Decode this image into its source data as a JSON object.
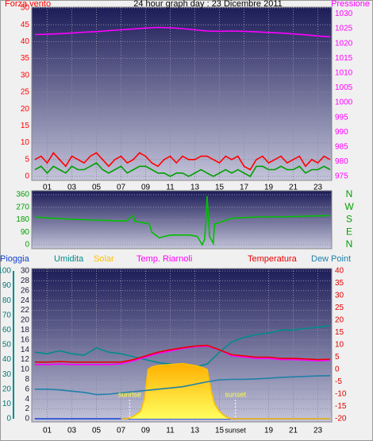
{
  "chart_data": [
    {
      "type": "line",
      "title": "24 hour graph day : 23 Dicembre 2011",
      "ylabel": "Forza vento",
      "y2label": "Pressione",
      "xlim": [
        0,
        24
      ],
      "xticks": [
        {
          "value": 1,
          "label": "01"
        },
        {
          "value": 3,
          "label": "03"
        },
        {
          "value": 5,
          "label": "05"
        },
        {
          "value": 7,
          "label": "07"
        },
        {
          "value": 9,
          "label": "09"
        },
        {
          "value": 11,
          "label": "11"
        },
        {
          "value": 13,
          "label": "13"
        },
        {
          "value": 15,
          "label": "15"
        },
        {
          "value": 17,
          "label": "17"
        },
        {
          "value": 19,
          "label": "19"
        },
        {
          "value": 21,
          "label": "21"
        },
        {
          "value": 23,
          "label": "23"
        }
      ],
      "ylim": [
        0,
        50
      ],
      "yticks": [
        0,
        5,
        10,
        15,
        20,
        25,
        30,
        35,
        40,
        45,
        50
      ],
      "y2lim": [
        975,
        1032
      ],
      "y2ticks": [
        975,
        980,
        985,
        990,
        995,
        1000,
        1005,
        1010,
        1015,
        1020,
        1025,
        1030
      ],
      "grid_axis": "y",
      "series": [
        {
          "color": "#ff0000",
          "x": [
            0,
            0.5,
            1,
            1.5,
            2,
            2.5,
            3,
            3.5,
            4,
            4.5,
            5,
            5.5,
            6,
            6.5,
            7,
            7.5,
            8,
            8.5,
            9,
            9.5,
            10,
            10.5,
            11,
            11.5,
            12,
            12.5,
            13,
            13.5,
            14,
            14.5,
            15,
            15.5,
            16,
            16.5,
            17,
            17.5,
            18,
            18.5,
            19,
            19.5,
            20,
            20.5,
            21,
            21.5,
            22,
            22.5,
            23,
            23.5,
            24
          ],
          "values": [
            5,
            6,
            4,
            7,
            5,
            3,
            6,
            5,
            4,
            6,
            7,
            5,
            3,
            5,
            6,
            4,
            5,
            7,
            6,
            4,
            3,
            5,
            6,
            4,
            6,
            5,
            5,
            6,
            6,
            5,
            4,
            6,
            5,
            6,
            3,
            2,
            5,
            6,
            4,
            5,
            6,
            4,
            5,
            6,
            3,
            5,
            4,
            6,
            5
          ]
        },
        {
          "color": "#00a000",
          "x": [
            0,
            0.5,
            1,
            1.5,
            2,
            2.5,
            3,
            3.5,
            4,
            4.5,
            5,
            5.5,
            6,
            6.5,
            7,
            7.5,
            8,
            8.5,
            9,
            9.5,
            10,
            10.5,
            11,
            11.5,
            12,
            12.5,
            13,
            13.5,
            14,
            14.5,
            15,
            15.5,
            16,
            16.5,
            17,
            17.5,
            18,
            18.5,
            19,
            19.5,
            20,
            20.5,
            21,
            21.5,
            22,
            22.5,
            23,
            23.5,
            24
          ],
          "values": [
            2,
            3,
            1,
            3,
            2,
            1,
            3,
            2,
            2,
            3,
            4,
            2,
            1,
            2,
            3,
            1,
            2,
            3,
            3,
            2,
            1,
            1,
            0,
            1,
            1,
            0,
            1,
            2,
            1,
            0,
            1,
            2,
            1,
            2,
            1,
            0,
            3,
            3,
            2,
            2,
            3,
            2,
            2,
            3,
            1,
            2,
            2,
            3,
            2
          ]
        },
        {
          "color": "#ff00ff",
          "axis": "y2",
          "x": [
            0,
            1,
            2,
            3,
            4,
            5,
            6,
            7,
            8,
            9,
            10,
            11,
            12,
            13,
            14,
            15,
            16,
            17,
            18,
            19,
            20,
            21,
            22,
            23,
            24
          ],
          "values": [
            1023,
            1023.1,
            1023.3,
            1023.5,
            1023.8,
            1024,
            1024.3,
            1024.6,
            1024.9,
            1025.2,
            1025.4,
            1025.3,
            1025,
            1024.6,
            1024.2,
            1024.1,
            1024.2,
            1024.1,
            1023.9,
            1023.7,
            1023.5,
            1023.2,
            1022.9,
            1022.5,
            1022.2
          ]
        }
      ]
    },
    {
      "type": "line",
      "xlim": [
        0,
        24
      ],
      "ylim": [
        0,
        360
      ],
      "yticks": [
        0,
        90,
        180,
        270,
        360
      ],
      "y2lim": [
        0,
        360
      ],
      "y2ticks": [
        {
          "value": 360,
          "label": "N"
        },
        {
          "value": 270,
          "label": "W"
        },
        {
          "value": 180,
          "label": "S"
        },
        {
          "value": 90,
          "label": "E"
        },
        {
          "value": 0,
          "label": "N"
        }
      ],
      "grid_axis": "y",
      "series": [
        {
          "color": "#00c000",
          "x": [
            0,
            1.5,
            4,
            7.4,
            8,
            8.1,
            9.3,
            9.5,
            10.1,
            11,
            12.6,
            13.2,
            13.6,
            13.8,
            14,
            14.2,
            14.5,
            14.6,
            15,
            16,
            18,
            20,
            22,
            24
          ],
          "values": [
            200,
            190,
            180,
            170,
            210,
            170,
            150,
            90,
            50,
            70,
            70,
            60,
            0,
            40,
            350,
            60,
            10,
            150,
            160,
            190,
            200,
            200,
            205,
            210
          ]
        }
      ]
    },
    {
      "type": "line",
      "xlim": [
        0,
        24
      ],
      "xticks": [
        {
          "value": 1,
          "label": "01"
        },
        {
          "value": 3,
          "label": "03"
        },
        {
          "value": 5,
          "label": "05"
        },
        {
          "value": 7,
          "label": "07"
        },
        {
          "value": 9,
          "label": "09"
        },
        {
          "value": 11,
          "label": "11"
        },
        {
          "value": 13,
          "label": "13"
        },
        {
          "value": 15,
          "label": "15"
        },
        {
          "value": 19,
          "label": "19"
        },
        {
          "value": 21,
          "label": "21"
        },
        {
          "value": 23,
          "label": "23"
        }
      ],
      "ylim": [
        0,
        100
      ],
      "yticks": [
        0,
        10,
        20,
        30,
        40,
        50,
        60,
        70,
        80,
        90,
        100
      ],
      "y3lim": [
        0,
        30
      ],
      "y3ticks": [
        0,
        2,
        4,
        6,
        8,
        10,
        12,
        14,
        16,
        18,
        20,
        22,
        24,
        26,
        28,
        30
      ],
      "y2lim": [
        -20,
        40
      ],
      "y2ticks": [
        -20,
        -15,
        -10,
        -5,
        0,
        5,
        10,
        15,
        20,
        25,
        30,
        35,
        40
      ],
      "grid_axis": "y3",
      "series": [
        {
          "name": "Pioggia",
          "color": "#1040d0",
          "axis": "y3",
          "x": [
            0,
            24
          ],
          "values": [
            0,
            0
          ]
        },
        {
          "name": "Umidita",
          "color": "#008c8c",
          "axis": "y",
          "x": [
            0,
            1,
            2,
            3,
            4,
            5,
            6,
            7,
            8,
            9,
            10,
            11,
            12,
            13,
            14,
            15,
            16,
            17,
            18,
            19,
            20,
            21,
            22,
            23,
            24
          ],
          "values": [
            45,
            44,
            46,
            44,
            43,
            48,
            45,
            44,
            42,
            40,
            38,
            37,
            36,
            35,
            37,
            45,
            52,
            55,
            57,
            58,
            60,
            60,
            61,
            62,
            63
          ]
        },
        {
          "name": "Solar",
          "color": "#ffc000",
          "axis": "y3",
          "type": "area",
          "x": [
            7,
            7.5,
            8,
            8.3,
            8.6,
            8.9,
            9.2,
            9.5,
            10,
            11,
            12,
            13,
            13.5,
            14,
            14.3,
            14.6,
            15,
            15.3,
            15.6,
            16,
            24
          ],
          "values": [
            0,
            0,
            0.5,
            1,
            1.5,
            4,
            10,
            10.5,
            10.8,
            11,
            11.2,
            10.8,
            10.5,
            10,
            6,
            3,
            1.5,
            0.8,
            0.3,
            0,
            0
          ]
        },
        {
          "name": "Temp. Riarnoli",
          "color": "#ff00ff",
          "axis": "y2",
          "x": [
            0,
            1,
            2,
            3,
            4,
            5,
            6,
            7,
            8,
            9,
            10,
            11,
            12,
            13,
            14,
            15,
            16,
            17,
            18,
            19,
            20,
            21,
            22,
            23,
            24
          ],
          "values": [
            2,
            2,
            2.2,
            2,
            2,
            2,
            2,
            2.3,
            3.5,
            5,
            6.5,
            7.5,
            8.5,
            9.2,
            9.5,
            8,
            5.5,
            5,
            4.5,
            4.5,
            4,
            4,
            3.8,
            3.5,
            3.7
          ]
        },
        {
          "name": "Temperatura",
          "color": "#e80000",
          "axis": "y2",
          "x": [
            0,
            1,
            2,
            3,
            4,
            5,
            6,
            7,
            8,
            9,
            10,
            11,
            12,
            13,
            14,
            15,
            16,
            17,
            18,
            19,
            20,
            21,
            22,
            23,
            24
          ],
          "values": [
            3,
            3,
            3.2,
            3,
            3,
            3,
            3,
            3,
            4,
            5.5,
            7,
            8,
            8.8,
            9.5,
            9.8,
            8,
            6,
            5.5,
            5,
            5,
            4.5,
            4.5,
            4.3,
            4,
            4.2
          ]
        },
        {
          "name": "Dew Point",
          "color": "#1f80a8",
          "axis": "y2",
          "x": [
            0,
            1,
            2,
            3,
            4,
            5,
            6,
            7,
            8,
            9,
            10,
            11,
            12,
            13,
            14,
            15,
            16,
            17,
            18,
            19,
            20,
            21,
            22,
            23,
            24
          ],
          "values": [
            -8,
            -8,
            -8.3,
            -8.8,
            -9.3,
            -10.2,
            -10,
            -9.5,
            -9,
            -8.5,
            -8,
            -7.5,
            -7,
            -6,
            -5,
            -4.2,
            -4,
            -4,
            -3.8,
            -3.5,
            -3.2,
            -3,
            -2.8,
            -2.6,
            -2.5
          ]
        }
      ],
      "events": [
        {
          "label": "sunrise",
          "x": 7.7
        },
        {
          "label": "sunset",
          "x": 16.3
        }
      ]
    }
  ]
}
